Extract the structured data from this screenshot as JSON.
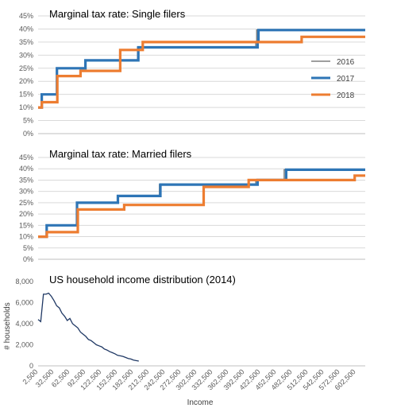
{
  "chart_data": [
    {
      "type": "line",
      "title": "Marginal tax rate: Single filers",
      "ylim": [
        0,
        45
      ],
      "yticks": [
        "0%",
        "5%",
        "10%",
        "15%",
        "20%",
        "25%",
        "30%",
        "35%",
        "40%",
        "45%"
      ],
      "legend": {
        "position": "right",
        "entries": [
          "2016",
          "2017",
          "2018"
        ]
      },
      "series": [
        {
          "name": "2016",
          "color": "#7f7f7f",
          "steps": [
            [
              2500,
              10
            ],
            [
              9300,
              15
            ],
            [
              37700,
              25
            ],
            [
              91500,
              28
            ],
            [
              190200,
              33
            ],
            [
              413300,
              35
            ],
            [
              415100,
              39.6
            ]
          ]
        },
        {
          "name": "2017",
          "color": "#2e75b6",
          "steps": [
            [
              2500,
              10
            ],
            [
              9325,
              15
            ],
            [
              37950,
              25
            ],
            [
              91900,
              28
            ],
            [
              191650,
              33
            ],
            [
              416700,
              35
            ],
            [
              418400,
              39.6
            ]
          ]
        },
        {
          "name": "2018",
          "color": "#ed7d31",
          "steps": [
            [
              2500,
              10
            ],
            [
              9525,
              12
            ],
            [
              38700,
              22
            ],
            [
              82500,
              24
            ],
            [
              157500,
              32
            ],
            [
              200000,
              35
            ],
            [
              500000,
              37
            ]
          ]
        }
      ]
    },
    {
      "type": "line",
      "title": "Marginal tax rate: Married filers",
      "ylim": [
        0,
        45
      ],
      "yticks": [
        "0%",
        "5%",
        "10%",
        "15%",
        "20%",
        "25%",
        "30%",
        "35%",
        "40%",
        "45%"
      ],
      "series": [
        {
          "name": "2016",
          "color": "#7f7f7f",
          "steps": [
            [
              2500,
              10
            ],
            [
              18550,
              15
            ],
            [
              75300,
              25
            ],
            [
              151900,
              28
            ],
            [
              231450,
              33
            ],
            [
              413350,
              35
            ],
            [
              466950,
              39.6
            ]
          ]
        },
        {
          "name": "2017",
          "color": "#2e75b6",
          "steps": [
            [
              2500,
              10
            ],
            [
              18650,
              15
            ],
            [
              75900,
              25
            ],
            [
              153100,
              28
            ],
            [
              233350,
              33
            ],
            [
              416700,
              35
            ],
            [
              470700,
              39.6
            ]
          ]
        },
        {
          "name": "2018",
          "color": "#ed7d31",
          "steps": [
            [
              2500,
              10
            ],
            [
              19050,
              12
            ],
            [
              77400,
              22
            ],
            [
              165000,
              24
            ],
            [
              315000,
              32
            ],
            [
              400000,
              35
            ],
            [
              600000,
              37
            ]
          ]
        }
      ]
    },
    {
      "type": "line",
      "title": "US household income distribution (2014)",
      "ylabel": "# households",
      "xlabel": "Income",
      "ylim": [
        0,
        8000
      ],
      "yticks": [
        "0",
        "2,000",
        "4,000",
        "6,000",
        "8,000"
      ],
      "xticks": [
        "2,500",
        "32,500",
        "62,500",
        "92,500",
        "122,500",
        "152,500",
        "182,500",
        "212,500",
        "242,500",
        "272,500",
        "302,500",
        "332,500",
        "362,500",
        "392,500",
        "422,500",
        "452,500",
        "482,500",
        "512,500",
        "542,500",
        "572,500",
        "602,500"
      ],
      "series": [
        {
          "name": "",
          "color": "#1f3864",
          "points": [
            [
              2500,
              4400
            ],
            [
              7500,
              4200
            ],
            [
              12500,
              6800
            ],
            [
              17500,
              6800
            ],
            [
              22500,
              6900
            ],
            [
              27500,
              6600
            ],
            [
              32500,
              6200
            ],
            [
              37500,
              5700
            ],
            [
              42500,
              5500
            ],
            [
              47500,
              5000
            ],
            [
              52500,
              4700
            ],
            [
              57500,
              4300
            ],
            [
              62500,
              4500
            ],
            [
              67500,
              4000
            ],
            [
              72500,
              3800
            ],
            [
              77500,
              3600
            ],
            [
              82500,
              3200
            ],
            [
              87500,
              3000
            ],
            [
              92500,
              2800
            ],
            [
              97500,
              2500
            ],
            [
              102500,
              2400
            ],
            [
              107500,
              2200
            ],
            [
              112500,
              2000
            ],
            [
              117500,
              1900
            ],
            [
              122500,
              1800
            ],
            [
              127500,
              1600
            ],
            [
              132500,
              1500
            ],
            [
              137500,
              1350
            ],
            [
              142500,
              1250
            ],
            [
              147500,
              1150
            ],
            [
              152500,
              1000
            ],
            [
              157500,
              950
            ],
            [
              162500,
              900
            ],
            [
              167500,
              800
            ],
            [
              172500,
              700
            ],
            [
              177500,
              650
            ],
            [
              182500,
              550
            ],
            [
              187500,
              500
            ],
            [
              192500,
              450
            ]
          ]
        }
      ]
    }
  ]
}
